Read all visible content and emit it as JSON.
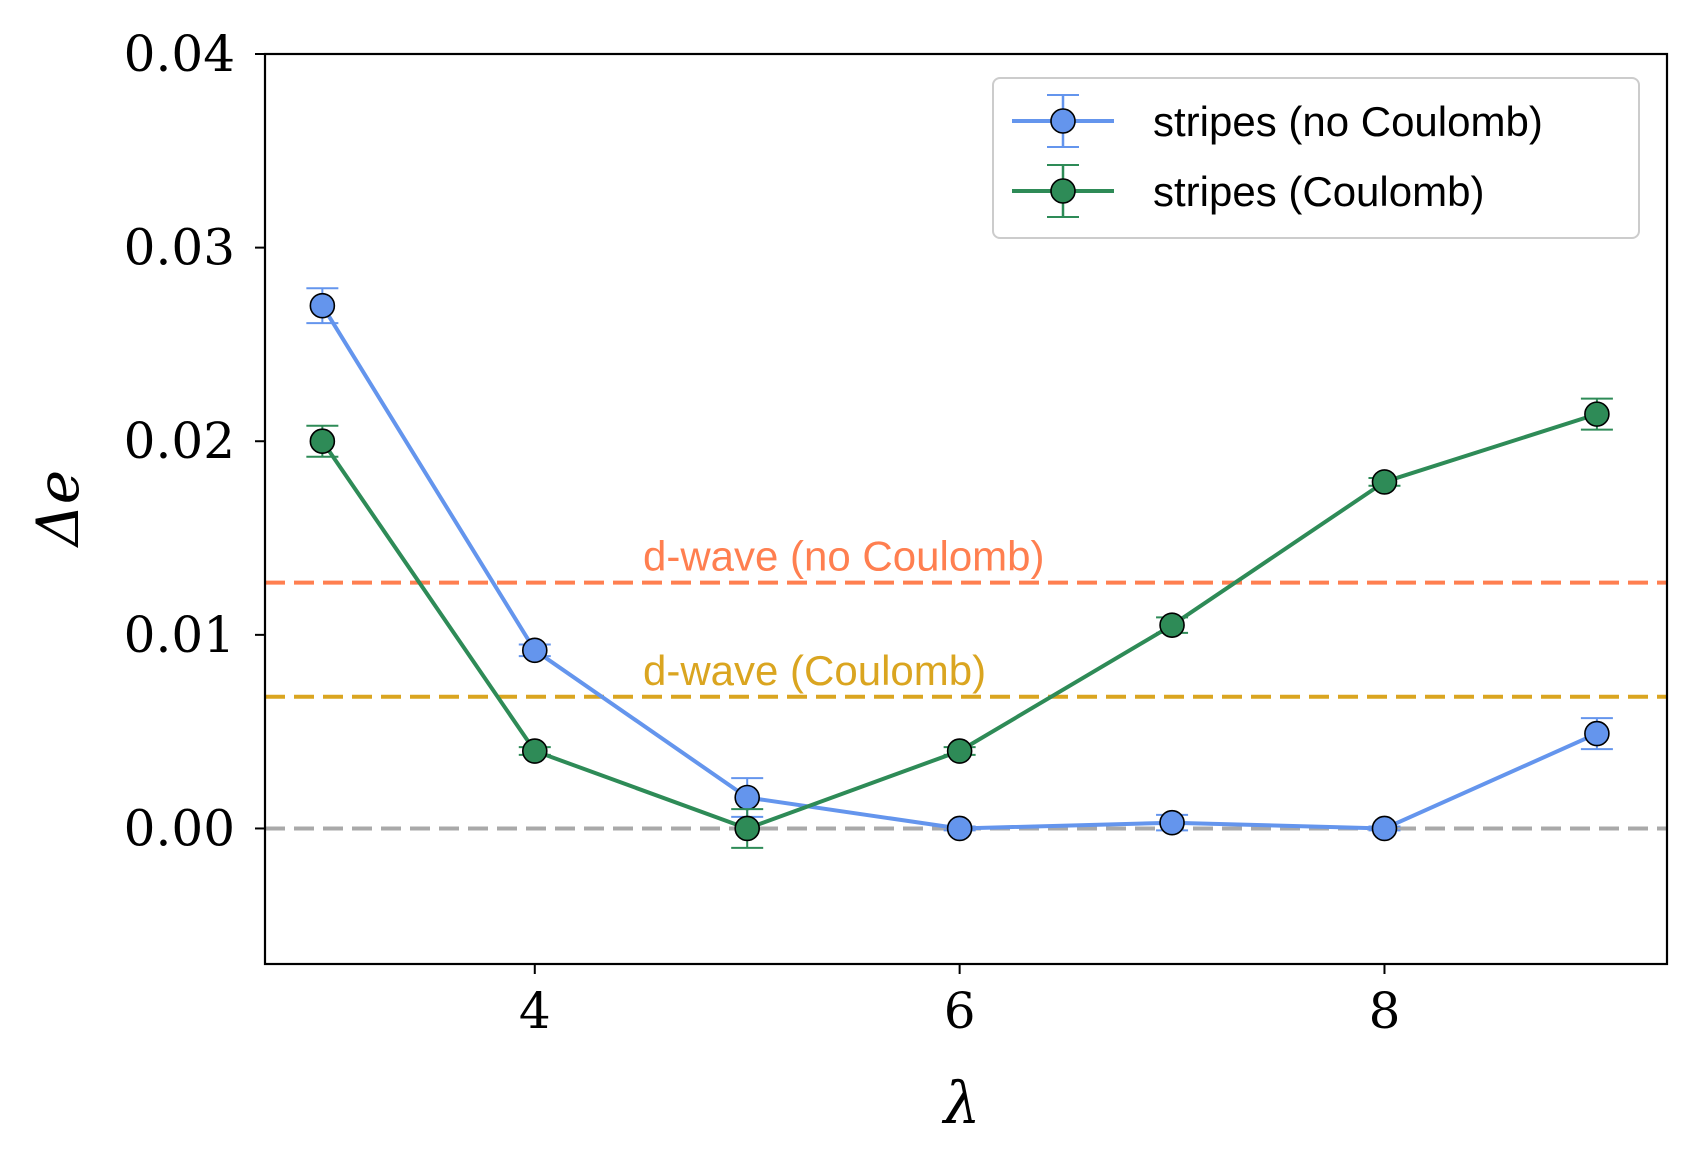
{
  "chart_data": {
    "type": "line",
    "xlabel": "λ",
    "ylabel": "Δe",
    "xlim": [
      2.73,
      9.33
    ],
    "ylim": [
      -0.007,
      0.04
    ],
    "xticks": [
      4,
      6,
      8
    ],
    "xtick_labels": [
      "4",
      "6",
      "8"
    ],
    "yticks": [
      0.0,
      0.01,
      0.02,
      0.03,
      0.04
    ],
    "ytick_labels": [
      "0.00",
      "0.01",
      "0.02",
      "0.03",
      "0.04"
    ],
    "grid": false,
    "legend_position": "top-right",
    "series": [
      {
        "name": "stripes (no Coulomb)",
        "color": "#6495ED",
        "x": [
          3,
          4,
          5,
          6,
          7,
          8,
          9
        ],
        "y": [
          0.027,
          0.0092,
          0.0016,
          0.0,
          0.0003,
          0.0,
          0.0049
        ],
        "yerr": [
          0.0009,
          0.0003,
          0.001,
          0.0001,
          0.0004,
          0.0001,
          0.0008
        ]
      },
      {
        "name": "stripes (Coulomb)",
        "color": "#2E8B57",
        "x": [
          3,
          4,
          5,
          6,
          7,
          8,
          9
        ],
        "y": [
          0.02,
          0.004,
          0.0,
          0.004,
          0.0105,
          0.0179,
          0.0214
        ],
        "yerr": [
          0.0008,
          0.0002,
          0.001,
          0.0002,
          0.0004,
          0.0002,
          0.0008
        ]
      }
    ],
    "reference_lines": [
      {
        "label": "d-wave (no Coulomb)",
        "y": 0.0127,
        "color": "#FF7F50"
      },
      {
        "label": "d-wave (Coulomb)",
        "y": 0.0068,
        "color": "#DAA520"
      },
      {
        "label": "",
        "y": 0.0,
        "color": "#A9A9A9"
      }
    ]
  }
}
